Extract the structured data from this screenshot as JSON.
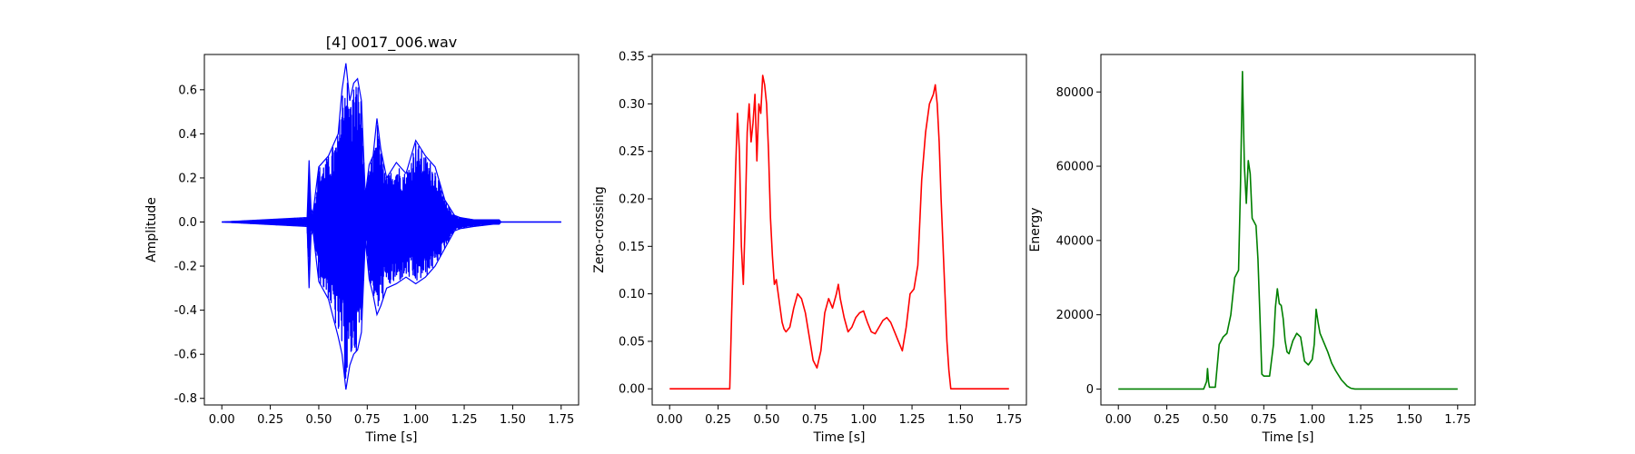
{
  "chart_data": [
    {
      "type": "line",
      "title": "[4] 0017_006.wav",
      "xlabel": "Time [s]",
      "ylabel": "Amplitude",
      "color": "#0000ff",
      "style": "waveform",
      "xlim": [
        -0.09,
        1.84
      ],
      "ylim": [
        -0.83,
        0.76
      ],
      "xticks": [
        "0.00",
        "0.25",
        "0.50",
        "0.75",
        "1.00",
        "1.25",
        "1.50",
        "1.75"
      ],
      "yticks": [
        "-0.8",
        "-0.6",
        "-0.4",
        "-0.2",
        "0.0",
        "0.2",
        "0.4",
        "0.6"
      ],
      "envelope": {
        "x": [
          0.0,
          0.44,
          0.45,
          0.46,
          0.47,
          0.5,
          0.55,
          0.6,
          0.62,
          0.64,
          0.66,
          0.68,
          0.7,
          0.72,
          0.74,
          0.76,
          0.78,
          0.8,
          0.82,
          0.85,
          0.9,
          0.95,
          1.0,
          1.05,
          1.1,
          1.15,
          1.2,
          1.23,
          1.3,
          1.4,
          1.43,
          1.44,
          1.75
        ],
        "upper": [
          0.0,
          0.02,
          0.28,
          0.06,
          0.04,
          0.25,
          0.3,
          0.4,
          0.6,
          0.72,
          0.55,
          0.63,
          0.65,
          0.55,
          0.12,
          0.26,
          0.3,
          0.47,
          0.33,
          0.2,
          0.27,
          0.22,
          0.37,
          0.3,
          0.25,
          0.1,
          0.03,
          0.02,
          0.01,
          0.01,
          0.01,
          0.0,
          0.0
        ],
        "lower": [
          0.0,
          -0.02,
          -0.3,
          -0.06,
          -0.04,
          -0.27,
          -0.35,
          -0.52,
          -0.6,
          -0.76,
          -0.65,
          -0.6,
          -0.58,
          -0.5,
          -0.08,
          -0.26,
          -0.33,
          -0.42,
          -0.38,
          -0.3,
          -0.28,
          -0.25,
          -0.28,
          -0.25,
          -0.2,
          -0.12,
          -0.04,
          -0.03,
          -0.02,
          -0.01,
          -0.01,
          0.0,
          0.0
        ]
      }
    },
    {
      "type": "line",
      "title": "",
      "xlabel": "Time [s]",
      "ylabel": "Zero-crossing",
      "color": "#ff0000",
      "xlim": [
        -0.09,
        1.84
      ],
      "ylim": [
        -0.017,
        0.352
      ],
      "xticks": [
        "0.00",
        "0.25",
        "0.50",
        "0.75",
        "1.00",
        "1.25",
        "1.50",
        "1.75"
      ],
      "yticks": [
        "0.00",
        "0.05",
        "0.10",
        "0.15",
        "0.20",
        "0.25",
        "0.30",
        "0.35"
      ],
      "x": [
        0.0,
        0.31,
        0.32,
        0.33,
        0.34,
        0.35,
        0.36,
        0.37,
        0.38,
        0.39,
        0.4,
        0.41,
        0.42,
        0.43,
        0.44,
        0.45,
        0.46,
        0.47,
        0.48,
        0.49,
        0.5,
        0.51,
        0.52,
        0.53,
        0.54,
        0.55,
        0.56,
        0.57,
        0.58,
        0.59,
        0.6,
        0.62,
        0.64,
        0.66,
        0.68,
        0.7,
        0.72,
        0.74,
        0.76,
        0.78,
        0.8,
        0.82,
        0.84,
        0.86,
        0.87,
        0.88,
        0.9,
        0.92,
        0.94,
        0.96,
        0.98,
        1.0,
        1.02,
        1.04,
        1.06,
        1.08,
        1.1,
        1.12,
        1.14,
        1.16,
        1.18,
        1.2,
        1.22,
        1.24,
        1.26,
        1.28,
        1.3,
        1.32,
        1.34,
        1.36,
        1.37,
        1.38,
        1.39,
        1.4,
        1.41,
        1.42,
        1.43,
        1.44,
        1.45,
        1.75
      ],
      "y": [
        0.0,
        0.0,
        0.08,
        0.15,
        0.23,
        0.29,
        0.25,
        0.15,
        0.11,
        0.18,
        0.27,
        0.3,
        0.26,
        0.28,
        0.31,
        0.24,
        0.3,
        0.29,
        0.33,
        0.32,
        0.3,
        0.25,
        0.18,
        0.14,
        0.11,
        0.115,
        0.1,
        0.085,
        0.07,
        0.063,
        0.06,
        0.065,
        0.085,
        0.1,
        0.095,
        0.08,
        0.055,
        0.03,
        0.022,
        0.04,
        0.08,
        0.095,
        0.085,
        0.1,
        0.11,
        0.095,
        0.075,
        0.06,
        0.065,
        0.075,
        0.08,
        0.082,
        0.07,
        0.06,
        0.058,
        0.065,
        0.072,
        0.075,
        0.07,
        0.06,
        0.05,
        0.04,
        0.065,
        0.1,
        0.105,
        0.13,
        0.22,
        0.27,
        0.3,
        0.31,
        0.32,
        0.3,
        0.26,
        0.2,
        0.15,
        0.1,
        0.05,
        0.02,
        0.0,
        0.0
      ]
    },
    {
      "type": "line",
      "title": "",
      "xlabel": "Time [s]",
      "ylabel": "Energy",
      "color": "#008000",
      "xlim": [
        -0.09,
        1.84
      ],
      "ylim": [
        -4290,
        90090
      ],
      "xticks": [
        "0.00",
        "0.25",
        "0.50",
        "0.75",
        "1.00",
        "1.25",
        "1.50",
        "1.75"
      ],
      "yticks": [
        "0",
        "20000",
        "40000",
        "60000",
        "80000"
      ],
      "x": [
        0.0,
        0.44,
        0.455,
        0.46,
        0.465,
        0.47,
        0.5,
        0.52,
        0.54,
        0.56,
        0.58,
        0.6,
        0.62,
        0.63,
        0.64,
        0.65,
        0.66,
        0.67,
        0.68,
        0.69,
        0.7,
        0.71,
        0.72,
        0.73,
        0.74,
        0.75,
        0.78,
        0.8,
        0.81,
        0.82,
        0.83,
        0.84,
        0.85,
        0.86,
        0.87,
        0.88,
        0.9,
        0.92,
        0.94,
        0.96,
        0.98,
        1.0,
        1.01,
        1.02,
        1.03,
        1.04,
        1.06,
        1.08,
        1.1,
        1.12,
        1.15,
        1.18,
        1.2,
        1.22,
        1.24,
        1.75
      ],
      "y": [
        0,
        0,
        2000,
        5500,
        2000,
        500,
        500,
        12000,
        14000,
        15000,
        20000,
        30000,
        32000,
        55000,
        85500,
        60000,
        50000,
        61500,
        58000,
        46000,
        45000,
        44000,
        35000,
        20000,
        4000,
        3500,
        3500,
        12000,
        22000,
        27000,
        23000,
        22500,
        19000,
        13000,
        10000,
        9500,
        13000,
        15000,
        14000,
        7500,
        6500,
        8000,
        12000,
        21500,
        18000,
        15000,
        12500,
        10000,
        7000,
        5000,
        2500,
        800,
        200,
        0,
        0,
        0
      ]
    }
  ]
}
